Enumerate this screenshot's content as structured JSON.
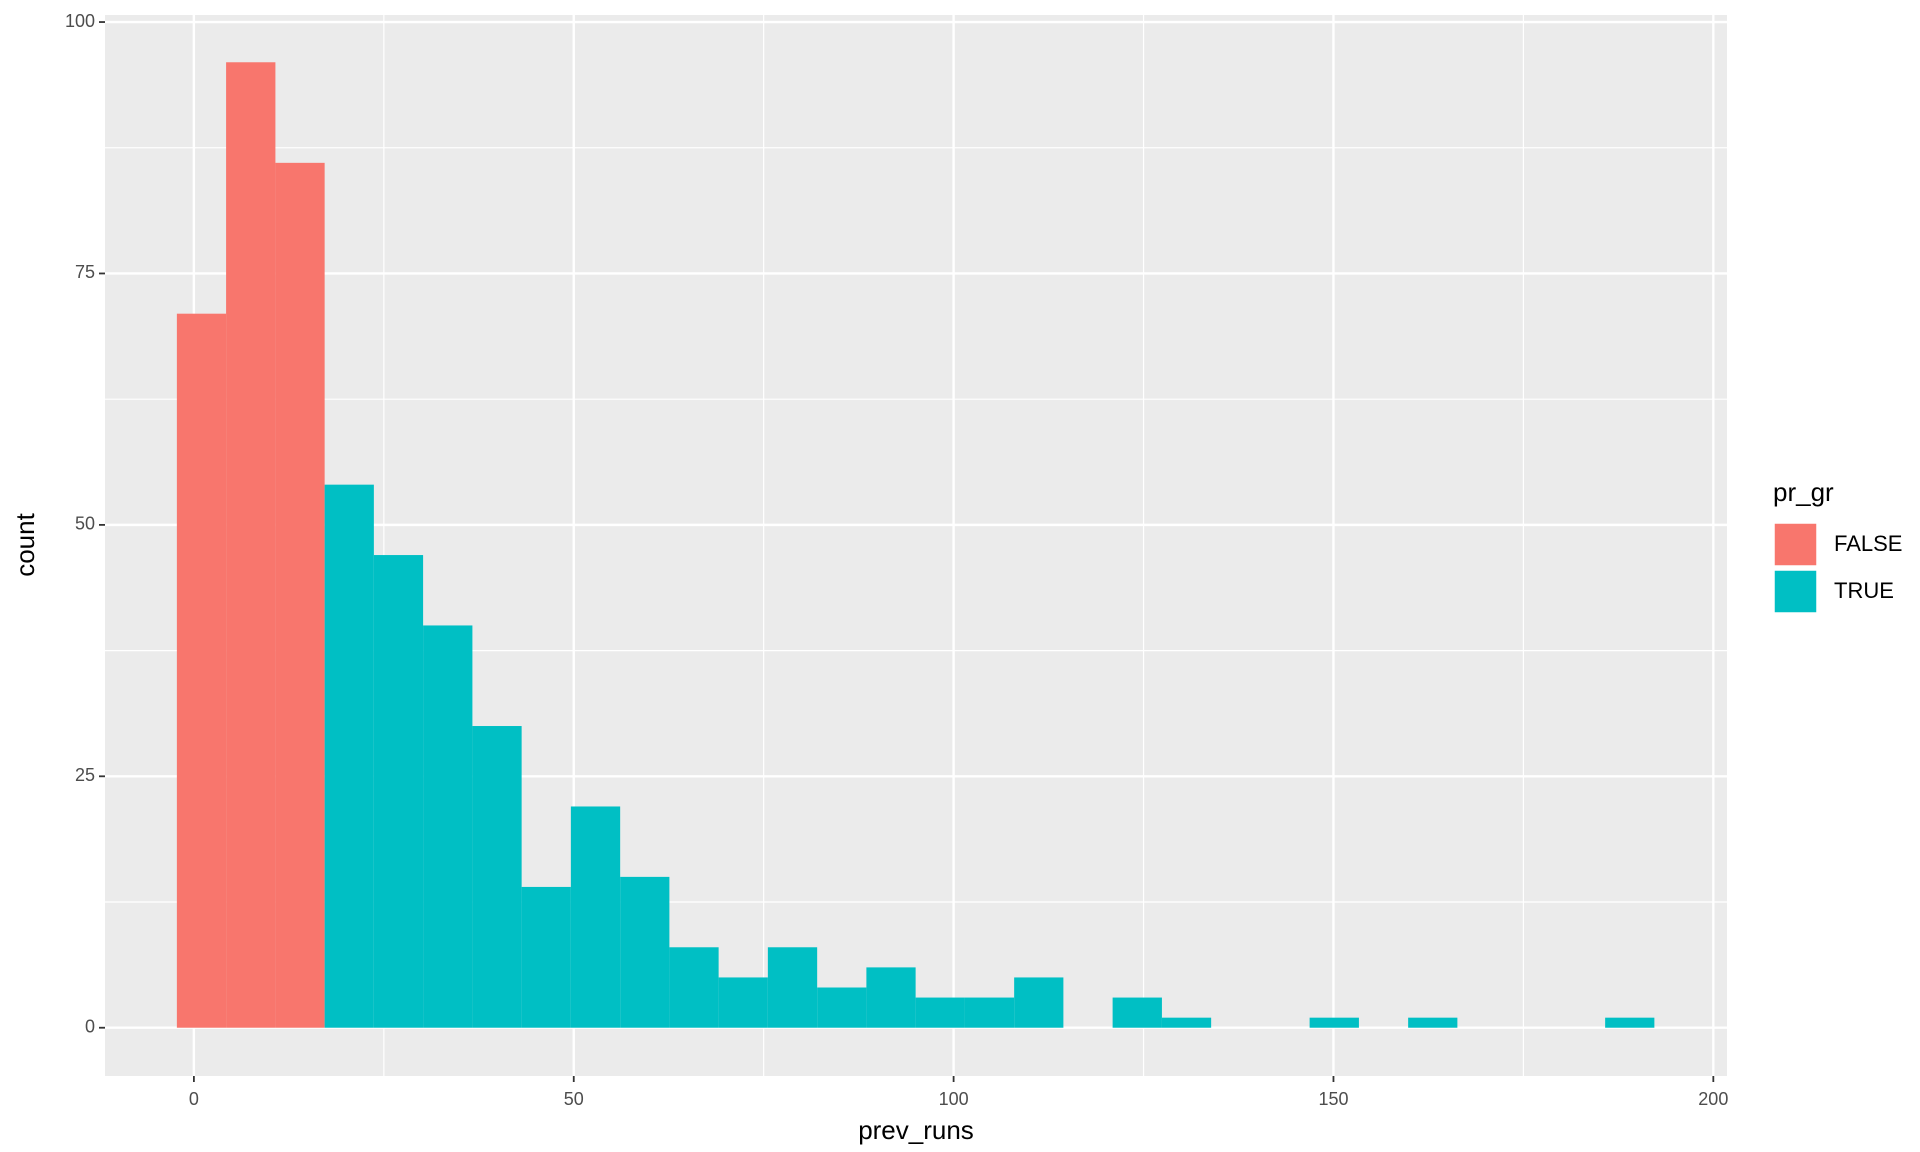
{
  "chart_data": {
    "type": "histogram",
    "x_label": "prev_runs",
    "y_label": "count",
    "legend_title": "pr_gr",
    "legend_position": "right",
    "stacked": true,
    "grid": true,
    "bins": [
      -2.24,
      4.24,
      10.73,
      17.21,
      23.69,
      30.17,
      36.66,
      43.14,
      49.62,
      56.11,
      62.59,
      69.07,
      75.55,
      82.04,
      88.52,
      95.0,
      101.49,
      107.97,
      114.45,
      120.93,
      127.42,
      133.9,
      140.38,
      146.86,
      153.35,
      159.83,
      166.31,
      172.8,
      179.28,
      185.76,
      192.24
    ],
    "series": [
      {
        "name": "FALSE",
        "color": "#f8766d",
        "values": [
          71,
          96,
          86,
          0,
          0,
          0,
          0,
          0,
          0,
          0,
          0,
          0,
          0,
          0,
          0,
          0,
          0,
          0,
          0,
          0,
          0,
          0,
          0,
          0,
          0,
          0,
          0,
          0,
          0,
          0
        ]
      },
      {
        "name": "TRUE",
        "color": "#00bfc4",
        "values": [
          0,
          0,
          0,
          54,
          47,
          40,
          30,
          14,
          22,
          15,
          8,
          5,
          8,
          4,
          6,
          3,
          3,
          5,
          0,
          3,
          1,
          0,
          0,
          1,
          0,
          1,
          0,
          0,
          0,
          1
        ]
      }
    ],
    "xlim": [
      -11.7,
      201.8
    ],
    "ylim": [
      -4.8,
      100.7
    ],
    "xticks": [
      0,
      50,
      100,
      150,
      200
    ],
    "yticks": [
      0,
      25,
      50,
      75,
      100
    ]
  }
}
